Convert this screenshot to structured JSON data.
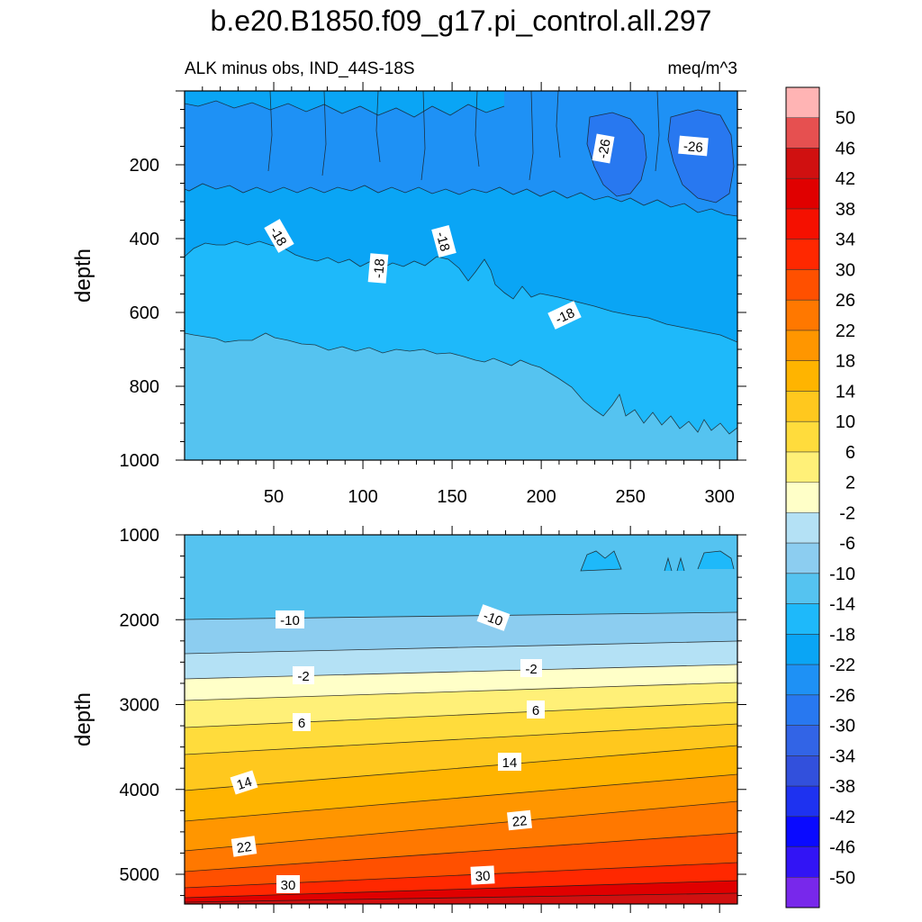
{
  "chart_data": {
    "type": "heatmap",
    "title": "b.e20.B1850.f09_g17.pi_control.all.297",
    "subtitle_left": "ALK minus obs, IND_44S-18S",
    "subtitle_right": "meq/m^3",
    "colorbar": {
      "levels": [
        "50",
        "46",
        "42",
        "38",
        "34",
        "30",
        "26",
        "22",
        "18",
        "14",
        "10",
        "6",
        "2",
        "-2",
        "-6",
        "-10",
        "-14",
        "-18",
        "-22",
        "-26",
        "-30",
        "-34",
        "-38",
        "-42",
        "-46",
        "-50"
      ],
      "colors": [
        "#ffb4b4",
        "#e65050",
        "#d01010",
        "#e00000",
        "#f51000",
        "#ff2800",
        "#ff5000",
        "#ff7800",
        "#ff9600",
        "#ffb400",
        "#ffc81e",
        "#ffdc3c",
        "#fff078",
        "#ffffc8",
        "#b4e1f5",
        "#8ccdf0",
        "#55c3f0",
        "#1eb9fa",
        "#0aa5f5",
        "#1e91f5",
        "#2878f0",
        "#3264e6",
        "#3250dc",
        "#1e32f0",
        "#0a0aff",
        "#3214f5",
        "#7828eb"
      ]
    },
    "panels": [
      {
        "name": "upper",
        "ylabel": "depth",
        "xlabel": "",
        "xlim": [
          0,
          310
        ],
        "ylim": [
          1000,
          0
        ],
        "xticks": [
          "50",
          "100",
          "150",
          "200",
          "250",
          "300"
        ],
        "yticks": [
          "200",
          "400",
          "600",
          "800",
          "1000"
        ],
        "contour_labels": [
          "-26",
          "-26",
          "-18",
          "-18",
          "-18",
          "-18"
        ]
      },
      {
        "name": "lower",
        "ylabel": "depth",
        "xlabel": "",
        "xlim": [
          0,
          310
        ],
        "ylim": [
          5350,
          1000
        ],
        "xticks": [],
        "yticks": [
          "1000",
          "2000",
          "3000",
          "4000",
          "5000"
        ],
        "contour_labels": [
          "-10",
          "-10",
          "-2",
          "-2",
          "6",
          "6",
          "14",
          "14",
          "22",
          "22",
          "30",
          "30"
        ]
      }
    ]
  }
}
